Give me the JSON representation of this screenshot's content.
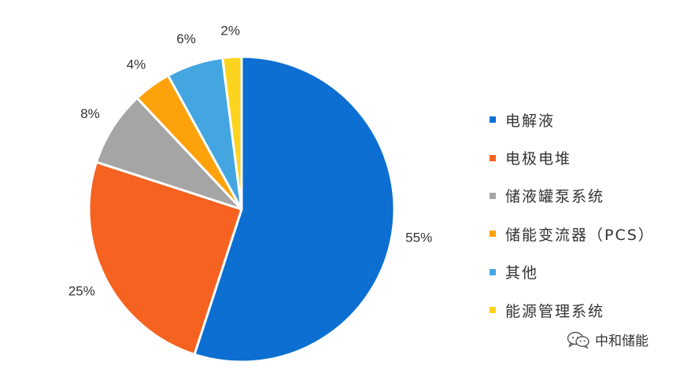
{
  "chart_data": {
    "type": "pie",
    "title": "",
    "start_angle_deg": 0,
    "direction": "clockwise",
    "slices": [
      {
        "name": "电解液",
        "value": 55,
        "label": "55%",
        "color": "#0c6fd1"
      },
      {
        "name": "电极电堆",
        "value": 25,
        "label": "25%",
        "color": "#f6621f"
      },
      {
        "name": "储液罐泵系统",
        "value": 8,
        "label": "8%",
        "color": "#a5a5a5"
      },
      {
        "name": "储能变流器（PCS）",
        "value": 4,
        "label": "4%",
        "color": "#fea20b"
      },
      {
        "name": "其他",
        "value": 6,
        "label": "6%",
        "color": "#44a6e0"
      },
      {
        "name": "能源管理系统",
        "value": 2,
        "label": "2%",
        "color": "#fcd31f"
      }
    ],
    "legend_position": "right"
  },
  "watermark": {
    "icon": "wechat-icon",
    "text": "中和储能"
  }
}
